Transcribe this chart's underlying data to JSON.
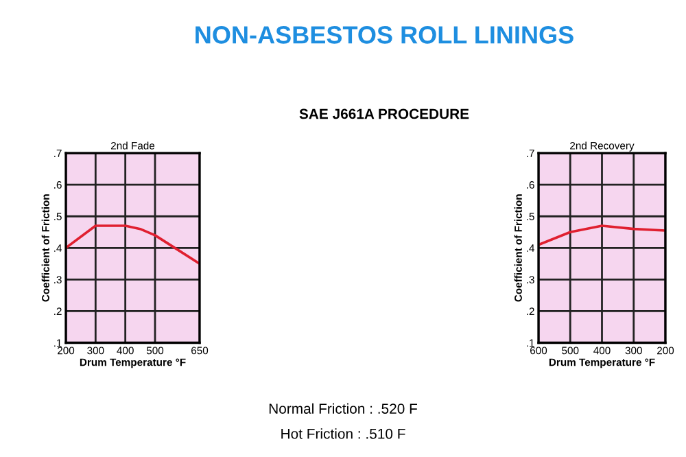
{
  "chart_data": [
    {
      "type": "other",
      "title": "NON-ASBESTOS ROLL LININGS",
      "subtitle": "SAE J661A PROCEDURE",
      "annotations": [
        "Normal Friction : .520 F",
        "Hot Friction : .510 F"
      ]
    },
    {
      "type": "line",
      "title": "2nd Fade",
      "xlabel": "Drum Temperature °F",
      "ylabel": "Coefficient of Friction",
      "x": [
        200,
        300,
        400,
        450,
        500,
        650
      ],
      "series": [
        {
          "color": "#e02030",
          "values": [
            0.4,
            0.47,
            0.47,
            0.46,
            0.44,
            0.35
          ]
        }
      ],
      "xlim": [
        200,
        650
      ],
      "xticks": [
        200,
        300,
        400,
        500,
        650
      ],
      "ylim": [
        0.1,
        0.7
      ],
      "yticks": [
        {
          "value": 0.1,
          "label": ".1"
        },
        {
          "value": 0.2,
          "label": ".2"
        },
        {
          "value": 0.3,
          "label": ".3"
        },
        {
          "value": 0.4,
          "label": ".4"
        },
        {
          "value": 0.5,
          "label": ".5"
        },
        {
          "value": 0.6,
          "label": ".6"
        },
        {
          "value": 0.7,
          "label": ".7"
        }
      ],
      "grid": true
    },
    {
      "type": "line",
      "title": "2nd Recovery",
      "xlabel": "Drum Temperature °F",
      "ylabel": "Coefficient of Friction",
      "x": [
        600,
        500,
        400,
        300,
        200
      ],
      "series": [
        {
          "color": "#e02030",
          "values": [
            0.41,
            0.45,
            0.47,
            0.46,
            0.455
          ]
        }
      ],
      "xlim": [
        600,
        200
      ],
      "xticks": [
        600,
        500,
        400,
        300,
        200
      ],
      "ylim": [
        0.1,
        0.7
      ],
      "yticks": [
        {
          "value": 0.1,
          "label": ".1"
        },
        {
          "value": 0.2,
          "label": ".2"
        },
        {
          "value": 0.3,
          "label": ".3"
        },
        {
          "value": 0.4,
          "label": ".4"
        },
        {
          "value": 0.5,
          "label": ".5"
        },
        {
          "value": 0.6,
          "label": ".6"
        },
        {
          "value": 0.7,
          "label": ".7"
        }
      ],
      "grid": true
    }
  ]
}
